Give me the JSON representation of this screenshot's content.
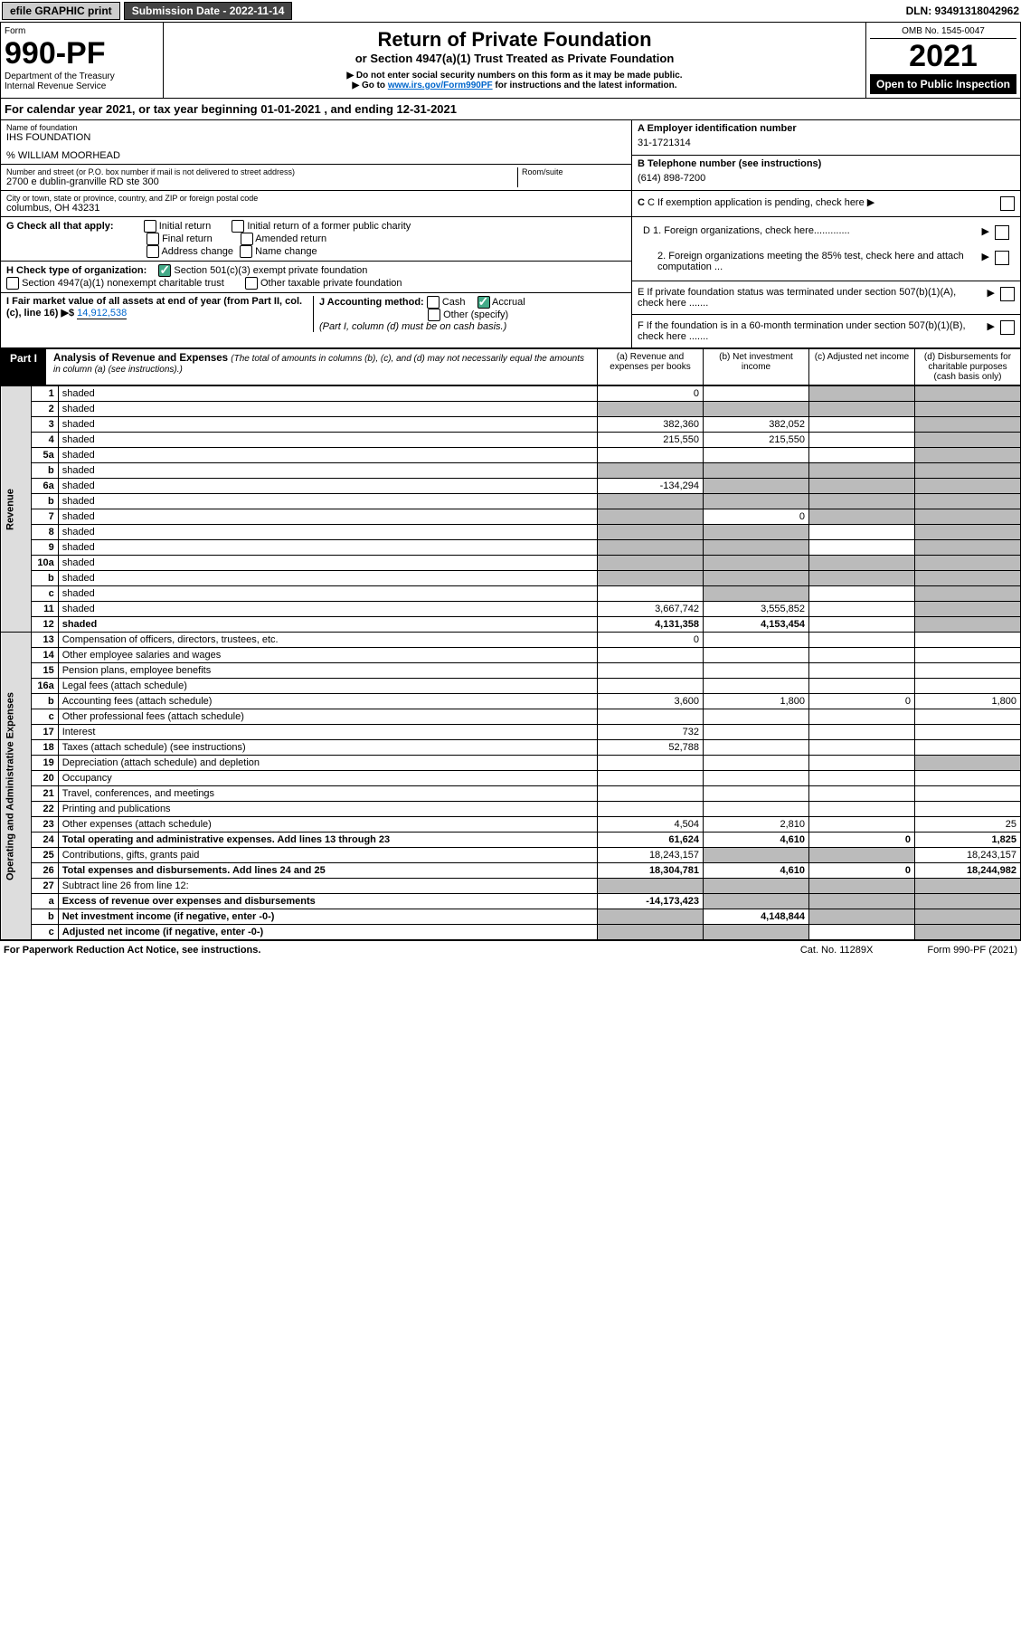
{
  "top": {
    "efile": "efile GRAPHIC print",
    "submission": "Submission Date - 2022-11-14",
    "dln": "DLN: 93491318042962"
  },
  "header": {
    "form_label": "Form",
    "form_num": "990-PF",
    "dept": "Department of the Treasury",
    "irs": "Internal Revenue Service",
    "title": "Return of Private Foundation",
    "subtitle": "or Section 4947(a)(1) Trust Treated as Private Foundation",
    "warn1": "▶ Do not enter social security numbers on this form as it may be made public.",
    "warn2_pre": "▶ Go to ",
    "warn2_link": "www.irs.gov/Form990PF",
    "warn2_post": " for instructions and the latest information.",
    "omb": "OMB No. 1545-0047",
    "year": "2021",
    "open": "Open to Public Inspection"
  },
  "cal_year": "For calendar year 2021, or tax year beginning 01-01-2021                              , and ending 12-31-2021",
  "name": {
    "label": "Name of foundation",
    "value": "IHS FOUNDATION",
    "care_of": "% WILLIAM MOORHEAD"
  },
  "address": {
    "label": "Number and street (or P.O. box number if mail is not delivered to street address)",
    "value": "2700 e dublin-granville RD ste 300",
    "room_label": "Room/suite"
  },
  "city": {
    "label": "City or town, state or province, country, and ZIP or foreign postal code",
    "value": "columbus, OH  43231"
  },
  "ein": {
    "label": "A Employer identification number",
    "value": "31-1721314"
  },
  "phone": {
    "label": "B Telephone number (see instructions)",
    "value": "(614) 898-7200"
  },
  "c_label": "C If exemption application is pending, check here",
  "d1_label": "D 1. Foreign organizations, check here.............",
  "d2_label": "2. Foreign organizations meeting the 85% test, check here and attach computation ...",
  "e_label": "E  If private foundation status was terminated under section 507(b)(1)(A), check here .......",
  "f_label": "F  If the foundation is in a 60-month termination under section 507(b)(1)(B), check here .......",
  "g": {
    "label": "G Check all that apply:",
    "opts": [
      "Initial return",
      "Initial return of a former public charity",
      "Final return",
      "Amended return",
      "Address change",
      "Name change"
    ]
  },
  "h": {
    "label": "H Check type of organization:",
    "opt1": "Section 501(c)(3) exempt private foundation",
    "opt2": "Section 4947(a)(1) nonexempt charitable trust",
    "opt3": "Other taxable private foundation"
  },
  "i": {
    "label": "I Fair market value of all assets at end of year (from Part II, col. (c), line 16)",
    "arrow": "▶$",
    "value": "14,912,538"
  },
  "j": {
    "label": "J Accounting method:",
    "cash": "Cash",
    "accrual": "Accrual",
    "other": "Other (specify)",
    "note": "(Part I, column (d) must be on cash basis.)"
  },
  "part1": {
    "label": "Part I",
    "title": "Analysis of Revenue and Expenses",
    "note": "(The total of amounts in columns (b), (c), and (d) may not necessarily equal the amounts in column (a) (see instructions).)",
    "col_a": "(a)   Revenue and expenses per books",
    "col_b": "(b)   Net investment income",
    "col_c": "(c)  Adjusted net income",
    "col_d": "(d)  Disbursements for charitable purposes (cash basis only)"
  },
  "vert": {
    "revenue": "Revenue",
    "expenses": "Operating and Administrative Expenses"
  },
  "rows": [
    {
      "n": "1",
      "d": "shaded",
      "a": "0",
      "b": "",
      "c": "shaded"
    },
    {
      "n": "2",
      "d": "shaded",
      "a": "shaded",
      "b": "shaded",
      "c": "shaded"
    },
    {
      "n": "3",
      "d": "shaded",
      "a": "382,360",
      "b": "382,052",
      "c": ""
    },
    {
      "n": "4",
      "d": "shaded",
      "a": "215,550",
      "b": "215,550",
      "c": ""
    },
    {
      "n": "5a",
      "d": "shaded",
      "a": "",
      "b": "",
      "c": ""
    },
    {
      "n": "b",
      "d": "shaded",
      "a": "shaded",
      "b": "shaded",
      "c": "shaded"
    },
    {
      "n": "6a",
      "d": "shaded",
      "a": "-134,294",
      "b": "shaded",
      "c": "shaded"
    },
    {
      "n": "b",
      "d": "shaded",
      "a": "shaded",
      "b": "shaded",
      "c": "shaded"
    },
    {
      "n": "7",
      "d": "shaded",
      "a": "shaded",
      "b": "0",
      "c": "shaded"
    },
    {
      "n": "8",
      "d": "shaded",
      "a": "shaded",
      "b": "shaded",
      "c": ""
    },
    {
      "n": "9",
      "d": "shaded",
      "a": "shaded",
      "b": "shaded",
      "c": ""
    },
    {
      "n": "10a",
      "d": "shaded",
      "a": "shaded",
      "b": "shaded",
      "c": "shaded"
    },
    {
      "n": "b",
      "d": "shaded",
      "a": "shaded",
      "b": "shaded",
      "c": "shaded"
    },
    {
      "n": "c",
      "d": "shaded",
      "a": "",
      "b": "shaded",
      "c": ""
    },
    {
      "n": "11",
      "d": "shaded",
      "a": "3,667,742",
      "b": "3,555,852",
      "c": ""
    },
    {
      "n": "12",
      "d": "shaded",
      "a": "4,131,358",
      "b": "4,153,454",
      "c": "",
      "bold": true
    }
  ],
  "exp_rows": [
    {
      "n": "13",
      "d": "",
      "a": "0",
      "b": "",
      "c": ""
    },
    {
      "n": "14",
      "d": "",
      "a": "",
      "b": "",
      "c": ""
    },
    {
      "n": "15",
      "d": "",
      "a": "",
      "b": "",
      "c": ""
    },
    {
      "n": "16a",
      "d": "",
      "a": "",
      "b": "",
      "c": ""
    },
    {
      "n": "b",
      "d": "1,800",
      "a": "3,600",
      "b": "1,800",
      "c": "0"
    },
    {
      "n": "c",
      "d": "",
      "a": "",
      "b": "",
      "c": ""
    },
    {
      "n": "17",
      "d": "",
      "a": "732",
      "b": "",
      "c": ""
    },
    {
      "n": "18",
      "d": "",
      "a": "52,788",
      "b": "",
      "c": ""
    },
    {
      "n": "19",
      "d": "shaded",
      "a": "",
      "b": "",
      "c": ""
    },
    {
      "n": "20",
      "d": "",
      "a": "",
      "b": "",
      "c": ""
    },
    {
      "n": "21",
      "d": "",
      "a": "",
      "b": "",
      "c": ""
    },
    {
      "n": "22",
      "d": "",
      "a": "",
      "b": "",
      "c": ""
    },
    {
      "n": "23",
      "d": "25",
      "a": "4,504",
      "b": "2,810",
      "c": ""
    },
    {
      "n": "24",
      "d": "1,825",
      "a": "61,624",
      "b": "4,610",
      "c": "0",
      "bold": true
    },
    {
      "n": "25",
      "d": "18,243,157",
      "a": "18,243,157",
      "b": "shaded",
      "c": "shaded"
    },
    {
      "n": "26",
      "d": "18,244,982",
      "a": "18,304,781",
      "b": "4,610",
      "c": "0",
      "bold": true
    },
    {
      "n": "27",
      "d": "shaded",
      "a": "shaded",
      "b": "shaded",
      "c": "shaded"
    },
    {
      "n": "a",
      "d": "shaded",
      "a": "-14,173,423",
      "b": "shaded",
      "c": "shaded",
      "bold": true
    },
    {
      "n": "b",
      "d": "shaded",
      "a": "shaded",
      "b": "4,148,844",
      "c": "shaded",
      "bold": true
    },
    {
      "n": "c",
      "d": "shaded",
      "a": "shaded",
      "b": "shaded",
      "c": "",
      "bold": true
    }
  ],
  "footer": {
    "left": "For Paperwork Reduction Act Notice, see instructions.",
    "cat": "Cat. No. 11289X",
    "form": "Form 990-PF (2021)"
  }
}
